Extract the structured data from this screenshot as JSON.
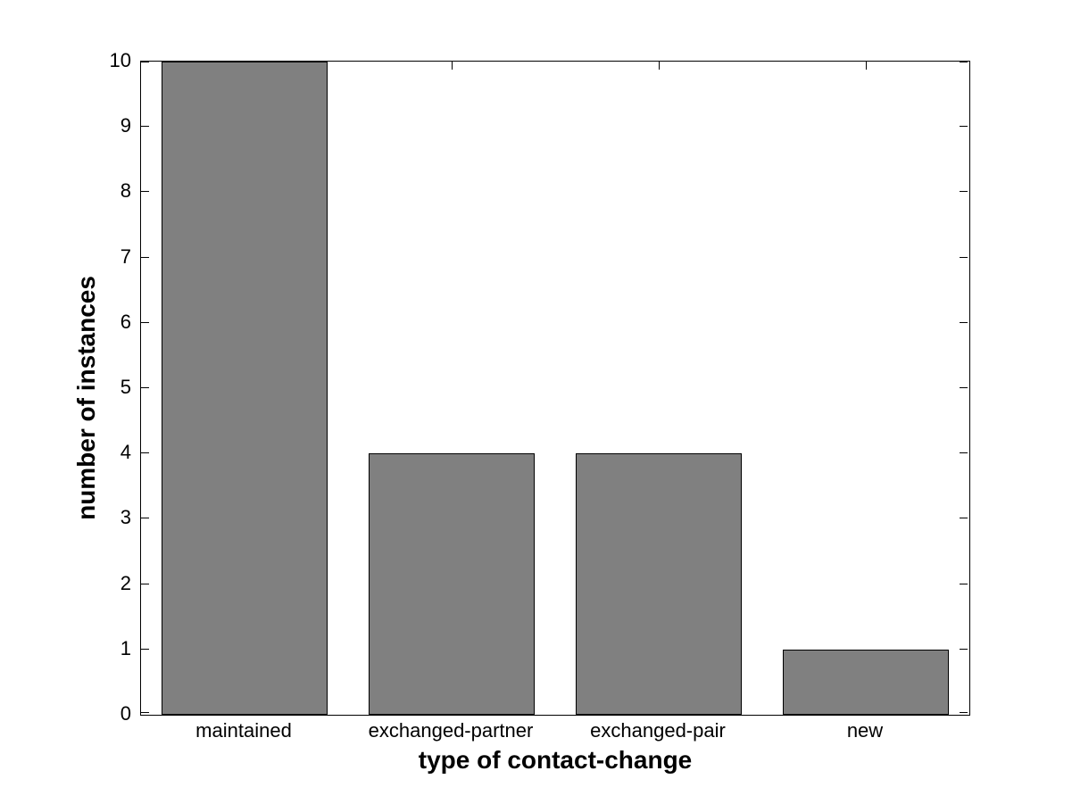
{
  "chart_data": {
    "type": "bar",
    "title": "",
    "categories": [
      "maintained",
      "exchanged-partner",
      "exchanged-pair",
      "new"
    ],
    "values": [
      10,
      4,
      4,
      1
    ],
    "xlabel": "type of contact-change",
    "ylabel": "number of instances",
    "ylim": [
      0,
      10
    ],
    "yticks": [
      0,
      1,
      2,
      3,
      4,
      5,
      6,
      7,
      8,
      9,
      10
    ],
    "grid": false,
    "legend_position": "none",
    "bar_width_fraction": 0.8,
    "colors": {
      "bar_fill": "#808080",
      "bar_edge": "#000000",
      "axis": "#000000",
      "text": "#000000",
      "background": "#ffffff"
    }
  }
}
